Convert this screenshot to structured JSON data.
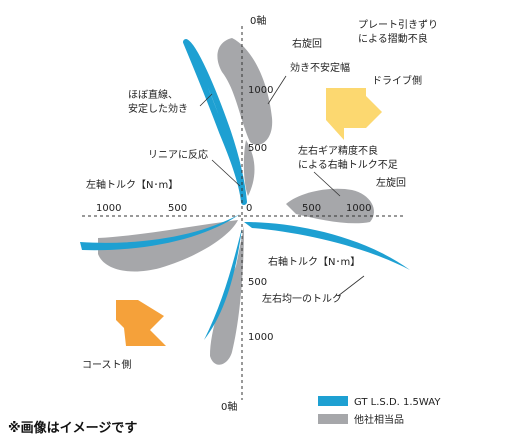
{
  "diagram": {
    "axis_top_label": "0軸",
    "axis_bottom_label": "0軸",
    "left_axis_label": "左軸トルク【N･m】",
    "right_axis_label": "右軸トルク【N･m】",
    "tick_1000_left": "1000",
    "tick_500_left": "500",
    "tick_0": "0",
    "tick_500_right": "500",
    "tick_1000_right": "1000",
    "tick_1000_up": "1000",
    "tick_500_up": "500",
    "tick_500_down": "500",
    "tick_1000_down": "1000",
    "turn_right": "右旋回",
    "turn_left": "左旋回",
    "drive_side": "ドライブ側",
    "coast_side": "コースト側",
    "plate_slip_line1": "プレート引きずり",
    "plate_slip_line2": "による摺動不良",
    "unstable_width": "効き不安定幅",
    "straight_line1": "ほぼ直線、",
    "straight_line2": "安定した効き",
    "linear_response": "リニアに反応",
    "gear_line1": "左右ギア精度不良",
    "gear_line2": "による右軸トルク不足",
    "equal_torque": "左右均一のトルク",
    "legend": [
      {
        "label": "GT L.S.D. 1.5WAY",
        "color": "#1ea0d2"
      },
      {
        "label": "他社相当品",
        "color": "#a6a7aa"
      }
    ],
    "note": "※画像はイメージです",
    "colors": {
      "gt": "#1ea0d2",
      "other": "#a6a7aa",
      "drive_arrow": "#fcd870",
      "coast_arrow": "#f5a13a"
    }
  }
}
